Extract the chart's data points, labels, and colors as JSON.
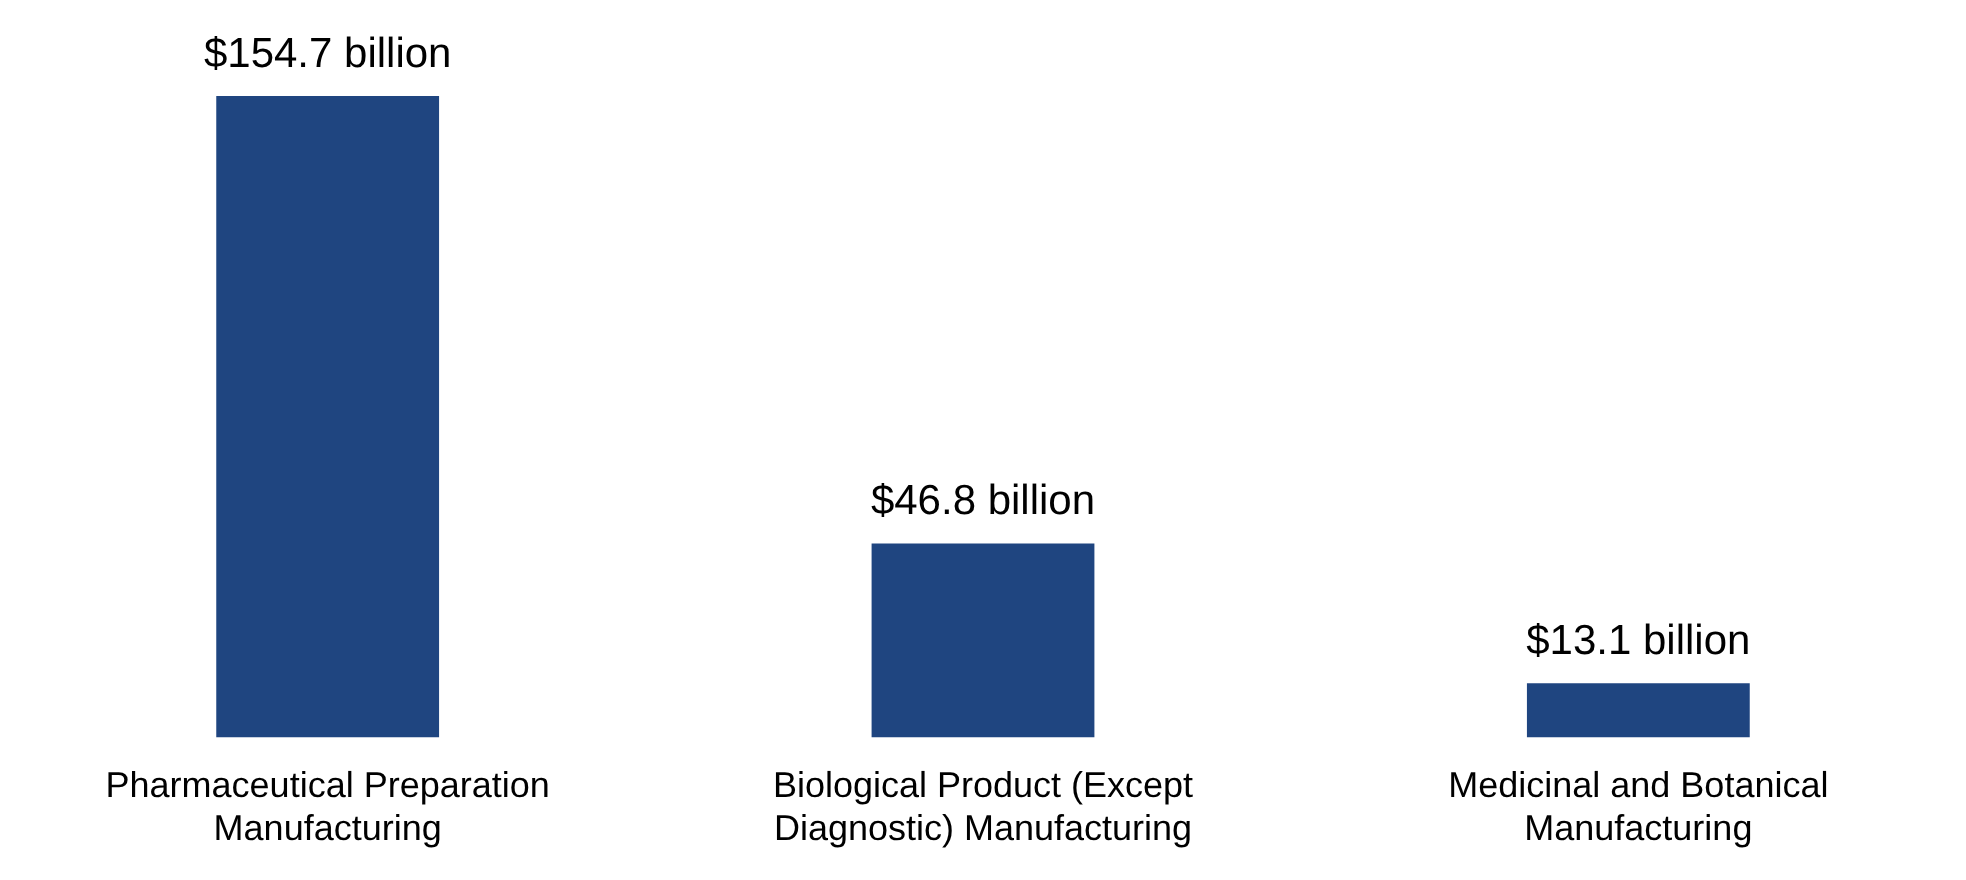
{
  "chart_data": {
    "type": "bar",
    "categories": [
      "Pharmaceutical Preparation Manufacturing",
      "Biological Product (Except Diagnostic) Manufacturing",
      "Medicinal and Botanical Manufacturing"
    ],
    "values": [
      154.7,
      46.8,
      13.1
    ],
    "value_labels": [
      "$154.7 billion",
      "$46.8 billion",
      "$13.1 billion"
    ],
    "color": "#1f4580",
    "legend": false,
    "grid": false
  }
}
